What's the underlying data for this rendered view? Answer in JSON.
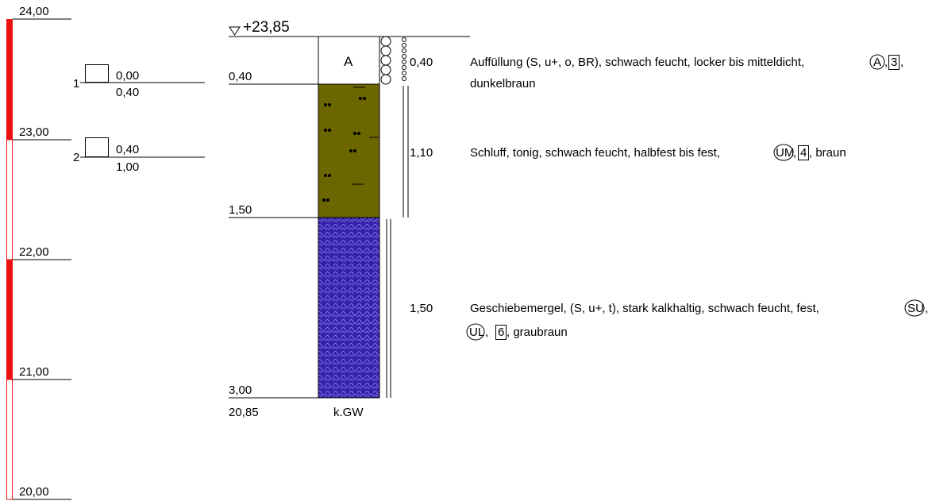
{
  "scale": {
    "labels": [
      "24,00",
      "23,00",
      "22,00",
      "21,00",
      "20,00"
    ],
    "color": "#ee1111"
  },
  "samples": [
    {
      "number": "1",
      "top": "0,00",
      "bottom": "0,40"
    },
    {
      "number": "2",
      "top": "0,40",
      "bottom": "1,00"
    }
  ],
  "profile": {
    "ground_level": "+23,85",
    "depths": [
      "0,40",
      "1,50",
      "3,00"
    ],
    "base_elevation": "20,85",
    "groundwater_note": "k.GW",
    "fill_symbol": "A"
  },
  "layers": [
    {
      "thickness": "0,40",
      "color": "#ffffff",
      "desc_lines": [
        [
          "Auffüllung (S, u+, o, BR), schwach feucht, locker bis mitteldicht,",
          "A",
          ",",
          "3",
          ","
        ],
        [
          "dunkelbraun"
        ]
      ],
      "circle_symbols": [
        "A"
      ],
      "box_symbols": [
        "3"
      ]
    },
    {
      "thickness": "1,10",
      "color": "#6b6600",
      "desc_lines": [
        [
          "Schluff, tonig, schwach feucht, halbfest bis fest,",
          "UM",
          ",",
          "4",
          ", braun"
        ]
      ],
      "circle_symbols": [
        "UM"
      ],
      "box_symbols": [
        "4"
      ]
    },
    {
      "thickness": "1,50",
      "color": "#3322aa",
      "desc_lines": [
        [
          "Geschiebemergel, (S, u+, t), stark kalkhaltig, schwach feucht, fest,",
          "SU",
          ","
        ],
        [
          "UL",
          ",",
          "6",
          ", graubraun"
        ]
      ],
      "circle_symbols": [
        "SU",
        "UL"
      ],
      "box_symbols": [
        "6"
      ]
    }
  ]
}
